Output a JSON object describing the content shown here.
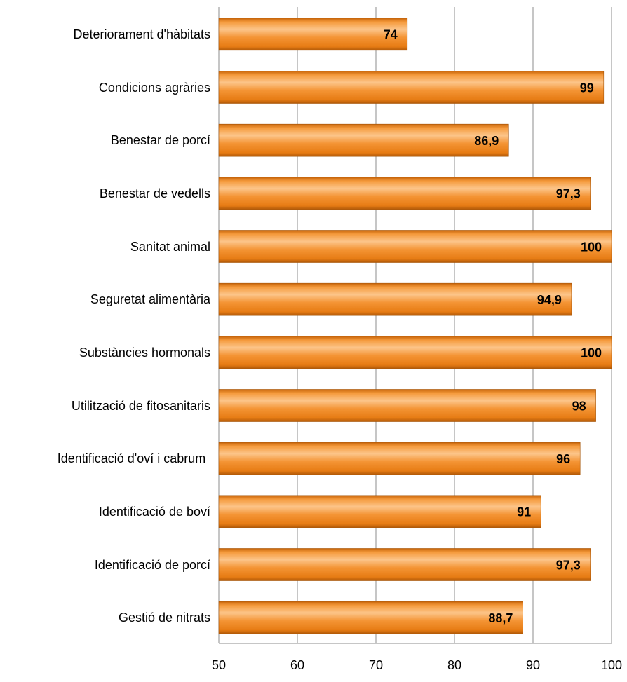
{
  "chart_data": {
    "type": "bar",
    "orientation": "horizontal",
    "categories": [
      "Deteriorament d'hàbitats",
      "Condicions agràries",
      "Benestar de porcí",
      "Benestar de vedells",
      "Sanitat animal",
      "Seguretat alimentària",
      "Substàncies hormonals",
      "Utilització de fitosanitaris",
      "Identificació d'oví i cabrum",
      "Identificació de boví",
      "Identificació de porcí",
      "Gestió de nitrats"
    ],
    "values": [
      74,
      99,
      86.9,
      97.3,
      100,
      94.9,
      100,
      98,
      96,
      91,
      97.3,
      88.7
    ],
    "value_labels": [
      "74",
      "99",
      "86,9",
      "97,3",
      "100",
      "94,9",
      "100",
      "98",
      "96",
      "91",
      "97,3",
      "88,7"
    ],
    "color": "#f28a1e",
    "xlim": [
      50,
      100
    ],
    "xticks": [
      50,
      60,
      70,
      80,
      90,
      100
    ],
    "grid": true
  }
}
